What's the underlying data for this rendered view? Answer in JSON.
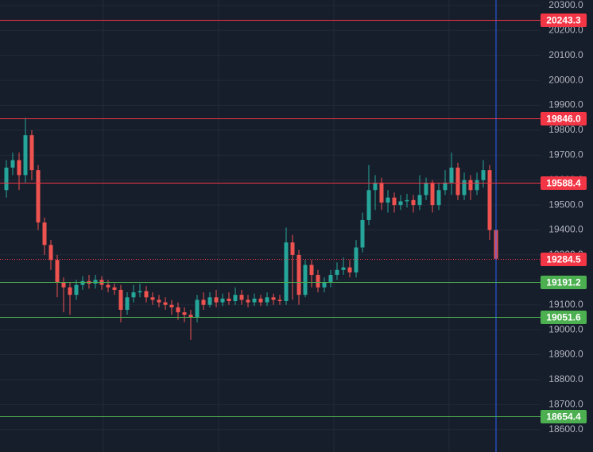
{
  "chart_data": {
    "type": "candlestick",
    "up_color": "#26a69a",
    "down_color": "#ef5350",
    "open": [
      19560,
      19650,
      19680,
      19620,
      19780,
      19640,
      19430,
      19340,
      19280,
      19190,
      19170,
      19140,
      19180,
      19195,
      19185,
      19200,
      19180,
      19170,
      19160,
      19080,
      19130,
      19150,
      19155,
      19130,
      19120,
      19110,
      19100,
      19090,
      19070,
      19060,
      19050,
      19120,
      19100,
      19130,
      19110,
      19125,
      19115,
      19140,
      19120,
      19110,
      19125,
      19110,
      19130,
      19120,
      19115,
      19350,
      19300,
      19140,
      19260,
      19220,
      19170,
      19190,
      19220,
      19240,
      19250,
      19230,
      19330,
      19440,
      19560,
      19590,
      19510,
      19530,
      19500,
      19515,
      19520,
      19500,
      19540,
      19590,
      19500,
      19560,
      19590,
      19650,
      19540,
      19600,
      19560,
      19600,
      19640,
      19400
    ],
    "high": [
      19680,
      19710,
      19710,
      19850,
      19800,
      19660,
      19450,
      19360,
      19300,
      19210,
      19190,
      19200,
      19215,
      19220,
      19220,
      19215,
      19200,
      19185,
      19180,
      19150,
      19180,
      19185,
      19175,
      19150,
      19140,
      19130,
      19120,
      19110,
      19090,
      19080,
      19140,
      19150,
      19150,
      19160,
      19145,
      19150,
      19170,
      19160,
      19140,
      19145,
      19140,
      19150,
      19145,
      19140,
      19410,
      19380,
      19320,
      19280,
      19280,
      19240,
      19210,
      19240,
      19270,
      19290,
      19280,
      19360,
      19470,
      19660,
      19620,
      19610,
      19560,
      19550,
      19540,
      19545,
      19540,
      19620,
      19610,
      19600,
      19590,
      19640,
      19710,
      19670,
      19630,
      19620,
      19630,
      19680,
      19660,
      19410
    ],
    "low": [
      19530,
      19620,
      19560,
      19590,
      19600,
      19400,
      19300,
      19240,
      19130,
      19070,
      19060,
      19120,
      19160,
      19165,
      19165,
      19160,
      19150,
      19140,
      19030,
      19060,
      19110,
      19130,
      19110,
      19100,
      19090,
      19080,
      19060,
      19040,
      19030,
      18960,
      19030,
      19080,
      19090,
      19090,
      19095,
      19100,
      19100,
      19100,
      19090,
      19095,
      19095,
      19095,
      19100,
      19100,
      19100,
      19120,
      19100,
      19130,
      19170,
      19150,
      19150,
      19170,
      19200,
      19220,
      19210,
      19210,
      19310,
      19420,
      19480,
      19480,
      19470,
      19470,
      19480,
      19490,
      19470,
      19480,
      19520,
      19470,
      19480,
      19540,
      19540,
      19520,
      19520,
      19520,
      19540,
      19570,
      19360,
      19270
    ],
    "close": [
      19650,
      19680,
      19620,
      19780,
      19640,
      19430,
      19340,
      19280,
      19190,
      19170,
      19140,
      19180,
      19195,
      19185,
      19200,
      19180,
      19170,
      19160,
      19080,
      19130,
      19150,
      19155,
      19130,
      19120,
      19110,
      19100,
      19090,
      19070,
      19060,
      19050,
      19120,
      19100,
      19130,
      19110,
      19125,
      19115,
      19140,
      19120,
      19110,
      19125,
      19110,
      19130,
      19120,
      19115,
      19350,
      19300,
      19140,
      19260,
      19220,
      19170,
      19190,
      19220,
      19240,
      19250,
      19230,
      19330,
      19440,
      19560,
      19590,
      19510,
      19530,
      19500,
      19515,
      19520,
      19500,
      19540,
      19590,
      19500,
      19560,
      19590,
      19650,
      19540,
      19600,
      19560,
      19600,
      19640,
      19400,
      19284.5
    ],
    "ylim": [
      18510,
      20322
    ],
    "yticks": [
      {
        "value": 18600,
        "label": "18600.0"
      },
      {
        "value": 18700,
        "label": "18700.0"
      },
      {
        "value": 18800,
        "label": "18800.0"
      },
      {
        "value": 18900,
        "label": "18900.0"
      },
      {
        "value": 19000,
        "label": "19000.0"
      },
      {
        "value": 19100,
        "label": "19100.0"
      },
      {
        "value": 19200,
        "label": "19200.0"
      },
      {
        "value": 19300,
        "label": "19300.0"
      },
      {
        "value": 19400,
        "label": "19400.0"
      },
      {
        "value": 19500,
        "label": "19500.0"
      },
      {
        "value": 19600,
        "label": "19600.0"
      },
      {
        "value": 19700,
        "label": "19700.0"
      },
      {
        "value": 19800,
        "label": "19800.0"
      },
      {
        "value": 19900,
        "label": "19900.0"
      },
      {
        "value": 20000,
        "label": "20000.0"
      },
      {
        "value": 20100,
        "label": "20100.0"
      },
      {
        "value": 20200,
        "label": "20200.0"
      },
      {
        "value": 20300,
        "label": "20300.0"
      }
    ],
    "levels": {
      "values": [
        20243.3,
        19846.0,
        19588.4,
        19284.5,
        19191.2,
        19051.6,
        18654.4
      ],
      "value_labels": [
        "20243.3",
        "19846.0",
        "19588.4",
        "19284.5",
        "19191.2",
        "19051.6",
        "18654.4"
      ],
      "colors": [
        "#f23645",
        "#f23645",
        "#f23645",
        "#f23645",
        "#4caf50",
        "#4caf50",
        "#4caf50"
      ],
      "dotted": [
        false,
        false,
        false,
        true,
        false,
        false,
        false
      ]
    }
  }
}
